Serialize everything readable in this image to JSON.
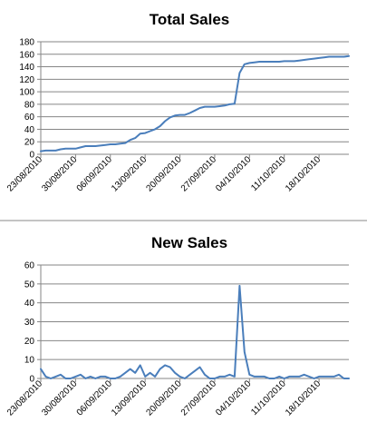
{
  "chart_data": [
    {
      "type": "line",
      "title": "Total Sales",
      "xlabel": "",
      "ylabel": "",
      "ylim": [
        0,
        180
      ],
      "yticks": [
        0,
        20,
        40,
        60,
        80,
        100,
        120,
        140,
        160,
        180
      ],
      "grid": true,
      "legend": "none",
      "color": "#4a7ebb",
      "x_tick_labels": [
        "23/08/2010",
        "30/08/2010",
        "06/09/2010",
        "13/09/2010",
        "20/09/2010",
        "27/09/2010",
        "04/10/2010",
        "11/10/2010",
        "18/10/2010"
      ],
      "x": [
        "2010-08-23",
        "2010-08-24",
        "2010-08-25",
        "2010-08-26",
        "2010-08-27",
        "2010-08-28",
        "2010-08-29",
        "2010-08-30",
        "2010-08-31",
        "2010-09-01",
        "2010-09-02",
        "2010-09-03",
        "2010-09-04",
        "2010-09-05",
        "2010-09-06",
        "2010-09-07",
        "2010-09-08",
        "2010-09-09",
        "2010-09-10",
        "2010-09-11",
        "2010-09-12",
        "2010-09-13",
        "2010-09-14",
        "2010-09-15",
        "2010-09-16",
        "2010-09-17",
        "2010-09-18",
        "2010-09-19",
        "2010-09-20",
        "2010-09-21",
        "2010-09-22",
        "2010-09-23",
        "2010-09-24",
        "2010-09-25",
        "2010-09-26",
        "2010-09-27",
        "2010-09-28",
        "2010-09-29",
        "2010-09-30",
        "2010-10-01",
        "2010-10-02",
        "2010-10-03",
        "2010-10-04",
        "2010-10-05",
        "2010-10-06",
        "2010-10-07",
        "2010-10-08",
        "2010-10-09",
        "2010-10-10",
        "2010-10-11",
        "2010-10-12",
        "2010-10-13",
        "2010-10-14",
        "2010-10-15",
        "2010-10-16",
        "2010-10-17",
        "2010-10-18",
        "2010-10-19",
        "2010-10-20",
        "2010-10-21",
        "2010-10-22",
        "2010-10-23",
        "2010-10-24"
      ],
      "values": [
        5,
        6,
        6,
        6,
        8,
        9,
        9,
        9,
        11,
        13,
        13,
        13,
        14,
        15,
        16,
        16,
        17,
        18,
        23,
        26,
        33,
        34,
        37,
        40,
        45,
        53,
        59,
        62,
        63,
        63,
        66,
        70,
        74,
        76,
        76,
        76,
        77,
        78,
        80,
        81,
        130,
        144,
        146,
        147,
        148,
        148,
        148,
        148,
        148,
        149,
        149,
        149,
        150,
        151,
        152,
        153,
        154,
        155,
        156,
        156,
        156,
        156,
        157
      ]
    },
    {
      "type": "line",
      "title": "New Sales",
      "xlabel": "",
      "ylabel": "",
      "ylim": [
        0,
        60
      ],
      "yticks": [
        0,
        10,
        20,
        30,
        40,
        50,
        60
      ],
      "grid": true,
      "legend": "none",
      "color": "#4a7ebb",
      "x_tick_labels": [
        "23/08/2010",
        "30/08/2010",
        "06/09/2010",
        "13/09/2010",
        "20/09/2010",
        "27/09/2010",
        "04/10/2010",
        "11/10/2010",
        "18/10/2010"
      ],
      "x": [
        "2010-08-23",
        "2010-08-24",
        "2010-08-25",
        "2010-08-26",
        "2010-08-27",
        "2010-08-28",
        "2010-08-29",
        "2010-08-30",
        "2010-08-31",
        "2010-09-01",
        "2010-09-02",
        "2010-09-03",
        "2010-09-04",
        "2010-09-05",
        "2010-09-06",
        "2010-09-07",
        "2010-09-08",
        "2010-09-09",
        "2010-09-10",
        "2010-09-11",
        "2010-09-12",
        "2010-09-13",
        "2010-09-14",
        "2010-09-15",
        "2010-09-16",
        "2010-09-17",
        "2010-09-18",
        "2010-09-19",
        "2010-09-20",
        "2010-09-21",
        "2010-09-22",
        "2010-09-23",
        "2010-09-24",
        "2010-09-25",
        "2010-09-26",
        "2010-09-27",
        "2010-09-28",
        "2010-09-29",
        "2010-09-30",
        "2010-10-01",
        "2010-10-02",
        "2010-10-03",
        "2010-10-04",
        "2010-10-05",
        "2010-10-06",
        "2010-10-07",
        "2010-10-08",
        "2010-10-09",
        "2010-10-10",
        "2010-10-11",
        "2010-10-12",
        "2010-10-13",
        "2010-10-14",
        "2010-10-15",
        "2010-10-16",
        "2010-10-17",
        "2010-10-18",
        "2010-10-19",
        "2010-10-20",
        "2010-10-21",
        "2010-10-22",
        "2010-10-23",
        "2010-10-24"
      ],
      "values": [
        5,
        1,
        0,
        1,
        2,
        0,
        0,
        1,
        2,
        0,
        1,
        0,
        1,
        1,
        0,
        0,
        1,
        3,
        5,
        3,
        7,
        1,
        3,
        1,
        5,
        7,
        6,
        3,
        1,
        0,
        2,
        4,
        6,
        2,
        0,
        0,
        1,
        1,
        2,
        1,
        49,
        14,
        2,
        1,
        1,
        1,
        0,
        0,
        1,
        0,
        1,
        1,
        1,
        2,
        1,
        0,
        1,
        1,
        1,
        1,
        2,
        0,
        0
      ]
    }
  ]
}
